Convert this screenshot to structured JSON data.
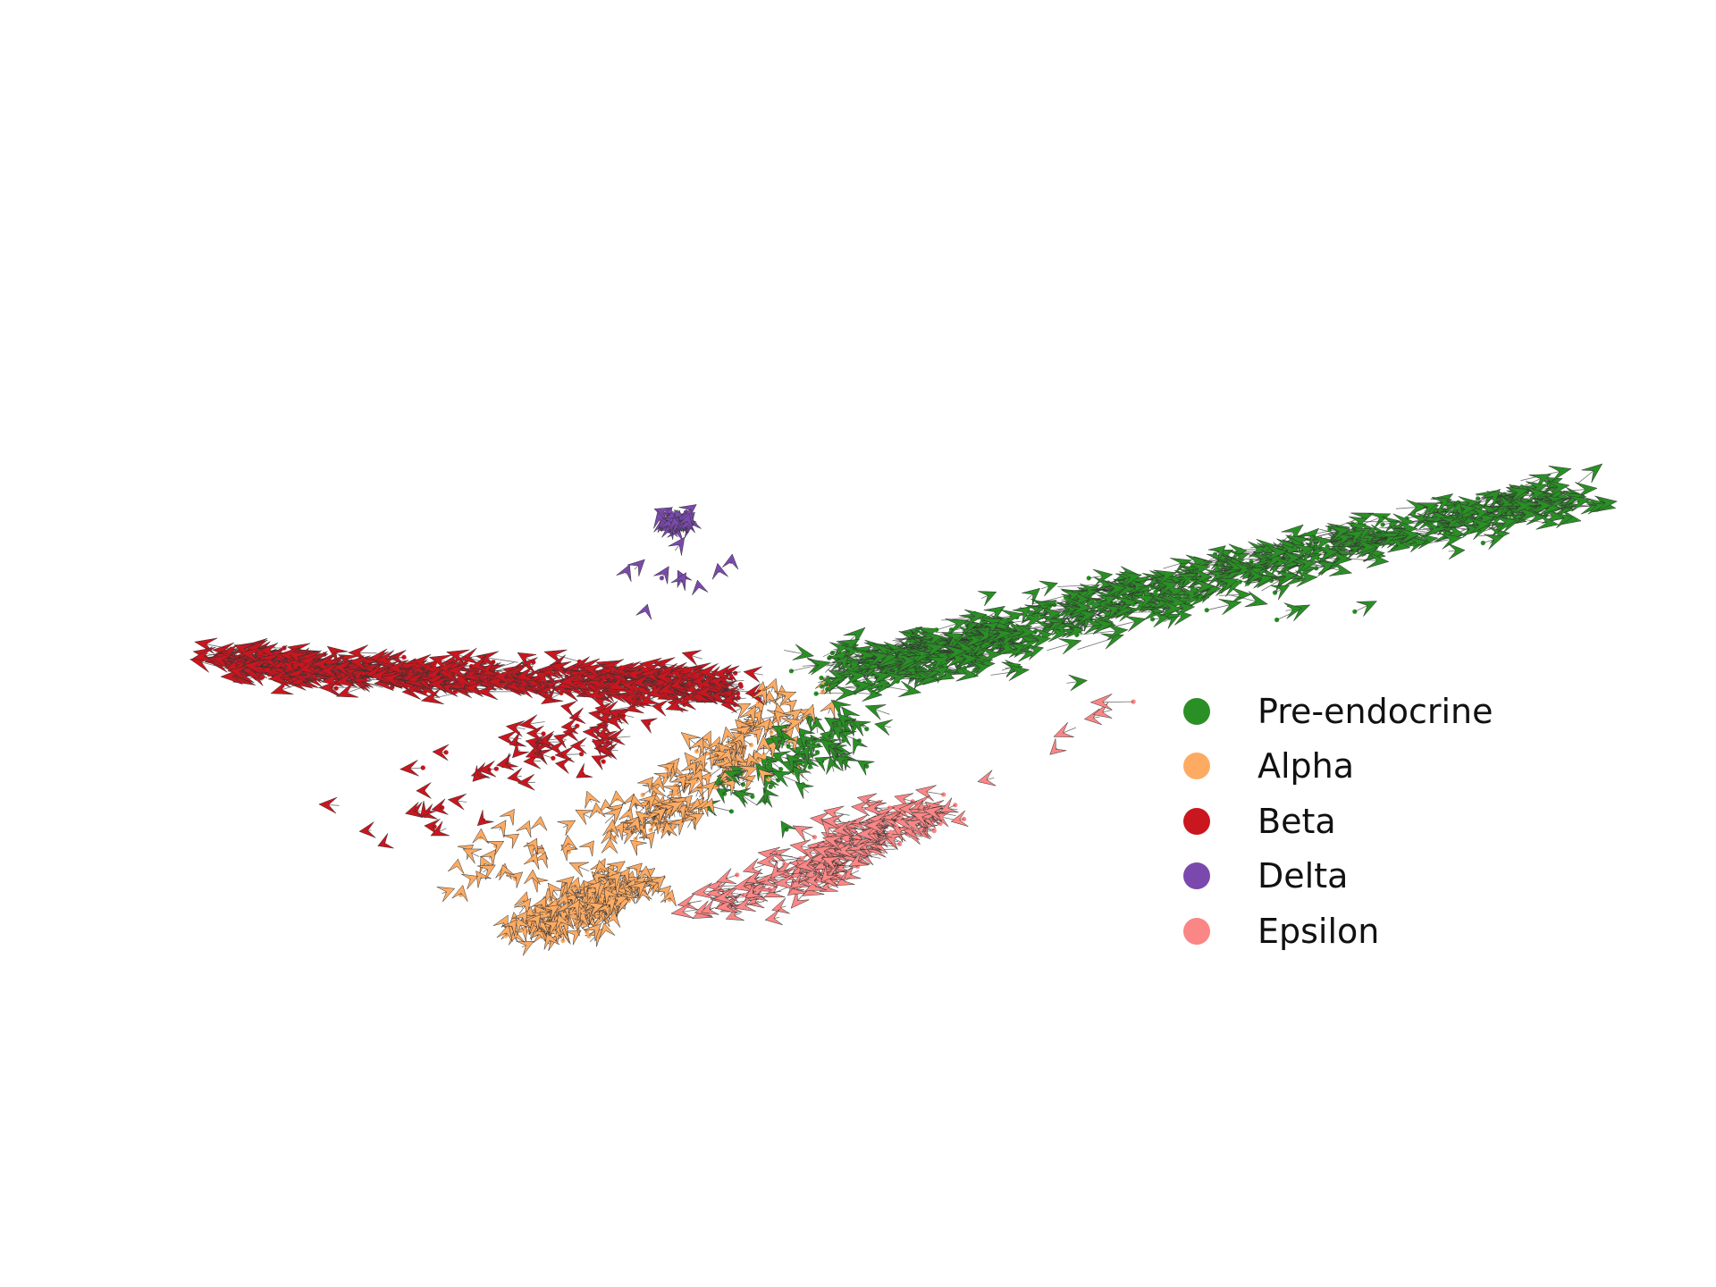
{
  "chart_data": {
    "type": "scatter",
    "title": "",
    "xlabel": "",
    "ylabel": "",
    "axes_visible": false,
    "grid": false,
    "legend_position": "right",
    "xlim": [
      0,
      100
    ],
    "ylim": [
      0,
      100
    ],
    "arrow_color": "#333333",
    "series": [
      {
        "name": "Pre-endocrine",
        "color": "#2a8f25",
        "clusters": [
          {
            "x0": 45,
            "y0": 51,
            "x1": 100,
            "y1": 80,
            "n": 520,
            "spread": 1.6,
            "dx": 3.4,
            "dy": 1.2
          },
          {
            "x0": 45,
            "y0": 49,
            "x1": 58,
            "y1": 55,
            "n": 140,
            "spread": 1.8,
            "dx": 3.0,
            "dy": 0.6
          },
          {
            "x0": 38,
            "y0": 27,
            "x1": 48,
            "y1": 42,
            "n": 70,
            "spread": 1.8,
            "dx": -1.5,
            "dy": 2.2
          },
          {
            "x0": 60,
            "y0": 57,
            "x1": 82,
            "y1": 64,
            "n": 25,
            "spread": 3.0,
            "dx": 3.0,
            "dy": 1.0
          }
        ]
      },
      {
        "name": "Alpha",
        "color": "#fdab63",
        "clusters": [
          {
            "x0": 22,
            "y0": 6,
            "x1": 30,
            "y1": 15,
            "n": 200,
            "spread": 1.5,
            "dx": 0.5,
            "dy": 2.2
          },
          {
            "x0": 29,
            "y0": 22,
            "x1": 42,
            "y1": 44,
            "n": 150,
            "spread": 1.8,
            "dx": 0.8,
            "dy": 2.6
          },
          {
            "x0": 18,
            "y0": 15,
            "x1": 29,
            "y1": 28,
            "n": 40,
            "spread": 2.5,
            "dx": 0.3,
            "dy": 1.5
          }
        ]
      },
      {
        "name": "Beta",
        "color": "#c9161f",
        "clusters": [
          {
            "x0": 0,
            "y0": 52,
            "x1": 8,
            "y1": 50,
            "n": 160,
            "spread": 1.2,
            "dx": -2.8,
            "dy": 0.3
          },
          {
            "x0": 8,
            "y0": 50,
            "x1": 38,
            "y1": 48,
            "n": 330,
            "spread": 1.4,
            "dx": -2.8,
            "dy": 0.0
          },
          {
            "x0": 21,
            "y0": 35,
            "x1": 33,
            "y1": 46,
            "n": 60,
            "spread": 2.2,
            "dx": -1.8,
            "dy": 0.5
          },
          {
            "x0": 12,
            "y0": 25,
            "x1": 22,
            "y1": 38,
            "n": 25,
            "spread": 2.6,
            "dx": -1.2,
            "dy": -0.8
          }
        ]
      },
      {
        "name": "Delta",
        "color": "#7b49ad",
        "clusters": [
          {
            "x0": 33,
            "y0": 75,
            "x1": 33,
            "y1": 75,
            "n": 45,
            "spread": 0.6,
            "dx": 0.2,
            "dy": 1.8
          },
          {
            "x0": 30,
            "y0": 62,
            "x1": 36,
            "y1": 68,
            "n": 10,
            "spread": 2.0,
            "dx": 0.3,
            "dy": 2.0
          }
        ]
      },
      {
        "name": "Epsilon",
        "color": "#fa8685",
        "clusters": [
          {
            "x0": 36,
            "y0": 10,
            "x1": 48,
            "y1": 20,
            "n": 80,
            "spread": 1.3,
            "dx": -2.6,
            "dy": -1.4
          },
          {
            "x0": 44,
            "y0": 18,
            "x1": 54,
            "y1": 28,
            "n": 110,
            "spread": 1.6,
            "dx": -2.4,
            "dy": 0.8
          },
          {
            "x0": 56,
            "y0": 34,
            "x1": 70,
            "y1": 47,
            "n": 6,
            "spread": 1.5,
            "dx": -2.8,
            "dy": -1.6
          }
        ]
      }
    ]
  }
}
